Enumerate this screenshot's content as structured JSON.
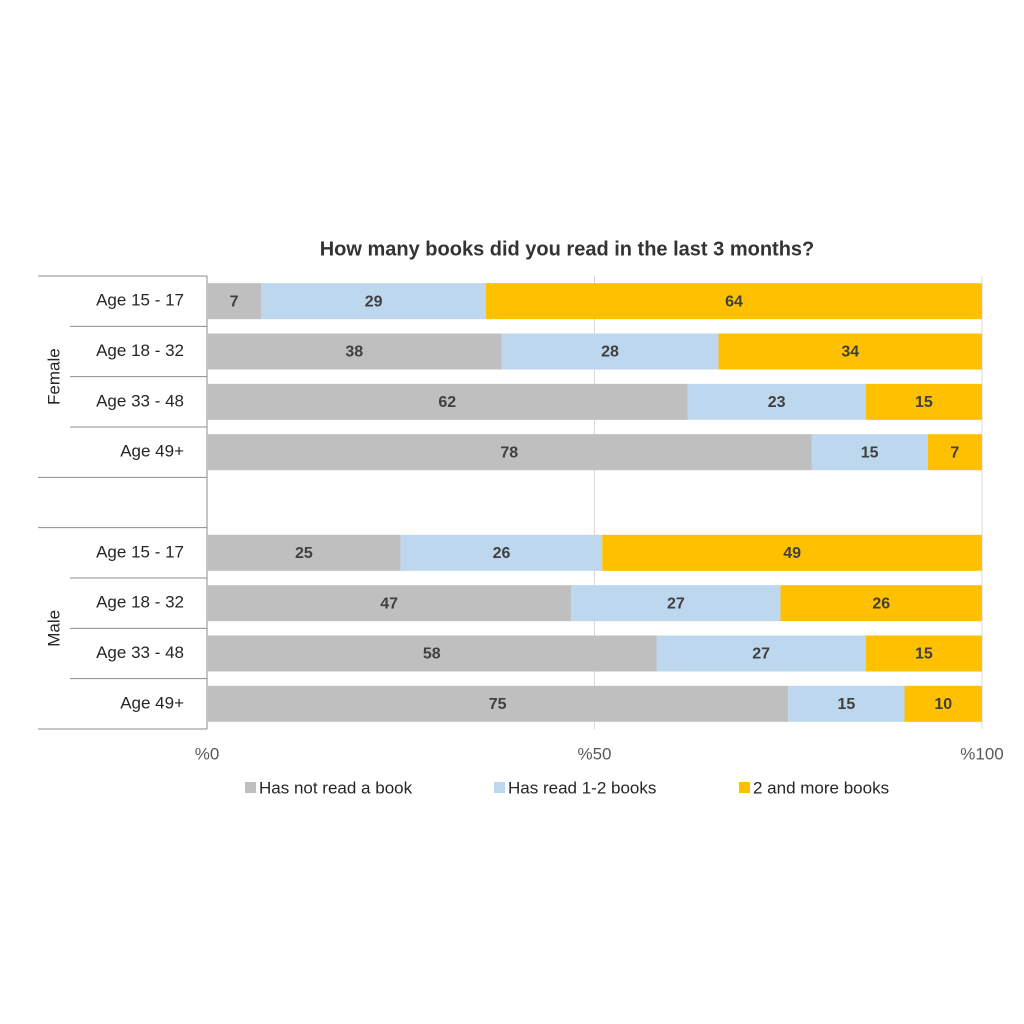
{
  "chart_data": {
    "type": "stacked-bar-horizontal",
    "title": "How many books did you read in the last 3 months?",
    "groups": [
      "Female",
      "Male"
    ],
    "categories": [
      "Age 15 - 17",
      "Age 18 - 32",
      "Age 33 - 48",
      "Age 49+",
      null,
      "Age 15 - 17",
      "Age 18 - 32",
      "Age 33 - 48",
      "Age 49+"
    ],
    "series": [
      {
        "name": "Has not read a book",
        "color": "#bfbfbf",
        "values": [
          7,
          38,
          62,
          78,
          null,
          25,
          47,
          58,
          75
        ]
      },
      {
        "name": "Has read 1-2 books",
        "color": "#bdd7ee",
        "values": [
          29,
          28,
          23,
          15,
          null,
          26,
          27,
          27,
          15
        ]
      },
      {
        "name": "2 and more books",
        "color": "#ffc000",
        "values": [
          64,
          34,
          15,
          7,
          null,
          49,
          26,
          15,
          10
        ]
      }
    ],
    "xlim": [
      0,
      100
    ],
    "xticks": [
      {
        "value": 0,
        "label": "%0"
      },
      {
        "value": 50,
        "label": "%50"
      },
      {
        "value": 100,
        "label": "%100"
      }
    ],
    "grid": true
  }
}
